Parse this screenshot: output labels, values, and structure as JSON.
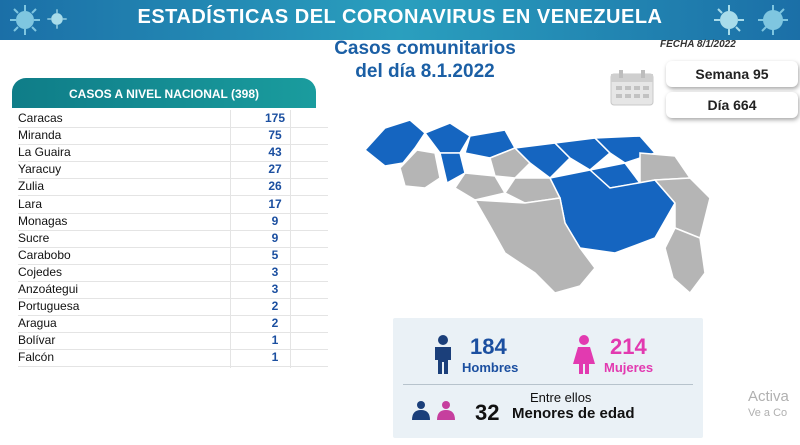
{
  "banner": {
    "title": "ESTADÍSTICAS DEL CORONAVIRUS EN VENEZUELA"
  },
  "subtitle": {
    "line1": "Casos comunitarios",
    "line2": "del día 8.1.2022"
  },
  "fecha": "FECHA 8/1/2022",
  "semana": "Semana 95",
  "dia": "Día 664",
  "national": {
    "title": "CASOS A NIVEL NACIONAL  (398)"
  },
  "states": [
    {
      "name": "Caracas",
      "cases": "175"
    },
    {
      "name": "Miranda",
      "cases": "75"
    },
    {
      "name": "La Guaira",
      "cases": "43"
    },
    {
      "name": "Yaracuy",
      "cases": "27"
    },
    {
      "name": "Zulia",
      "cases": "26"
    },
    {
      "name": "Lara",
      "cases": "17"
    },
    {
      "name": "Monagas",
      "cases": "9"
    },
    {
      "name": "Sucre",
      "cases": "9"
    },
    {
      "name": "Carabobo",
      "cases": "5"
    },
    {
      "name": "Cojedes",
      "cases": "3"
    },
    {
      "name": "Anzoátegui",
      "cases": "3"
    },
    {
      "name": "Portuguesa",
      "cases": "2"
    },
    {
      "name": "Aragua",
      "cases": "2"
    },
    {
      "name": "Bolívar",
      "cases": "1"
    },
    {
      "name": "Falcón",
      "cases": "1"
    }
  ],
  "gender": {
    "men_count": "184",
    "men_label": "Hombres",
    "women_count": "214",
    "women_label": "Mujeres"
  },
  "minors": {
    "intro": "Entre ellos",
    "count": "32",
    "label": "Menores de edad"
  },
  "watermark": {
    "line1": "Activa",
    "line2": "Ve a Co"
  },
  "colors": {
    "accent_blue": "#1b5fa5",
    "map_blue": "#1565c0",
    "map_gray": "#b5b5b5",
    "women_pink": "#e23ab0",
    "men_blue": "#1b4fa0",
    "title_teal": "#0f7d88"
  },
  "icons": [
    "virus-icon",
    "calendar-icon",
    "male-icon",
    "female-icon",
    "children-icon"
  ]
}
